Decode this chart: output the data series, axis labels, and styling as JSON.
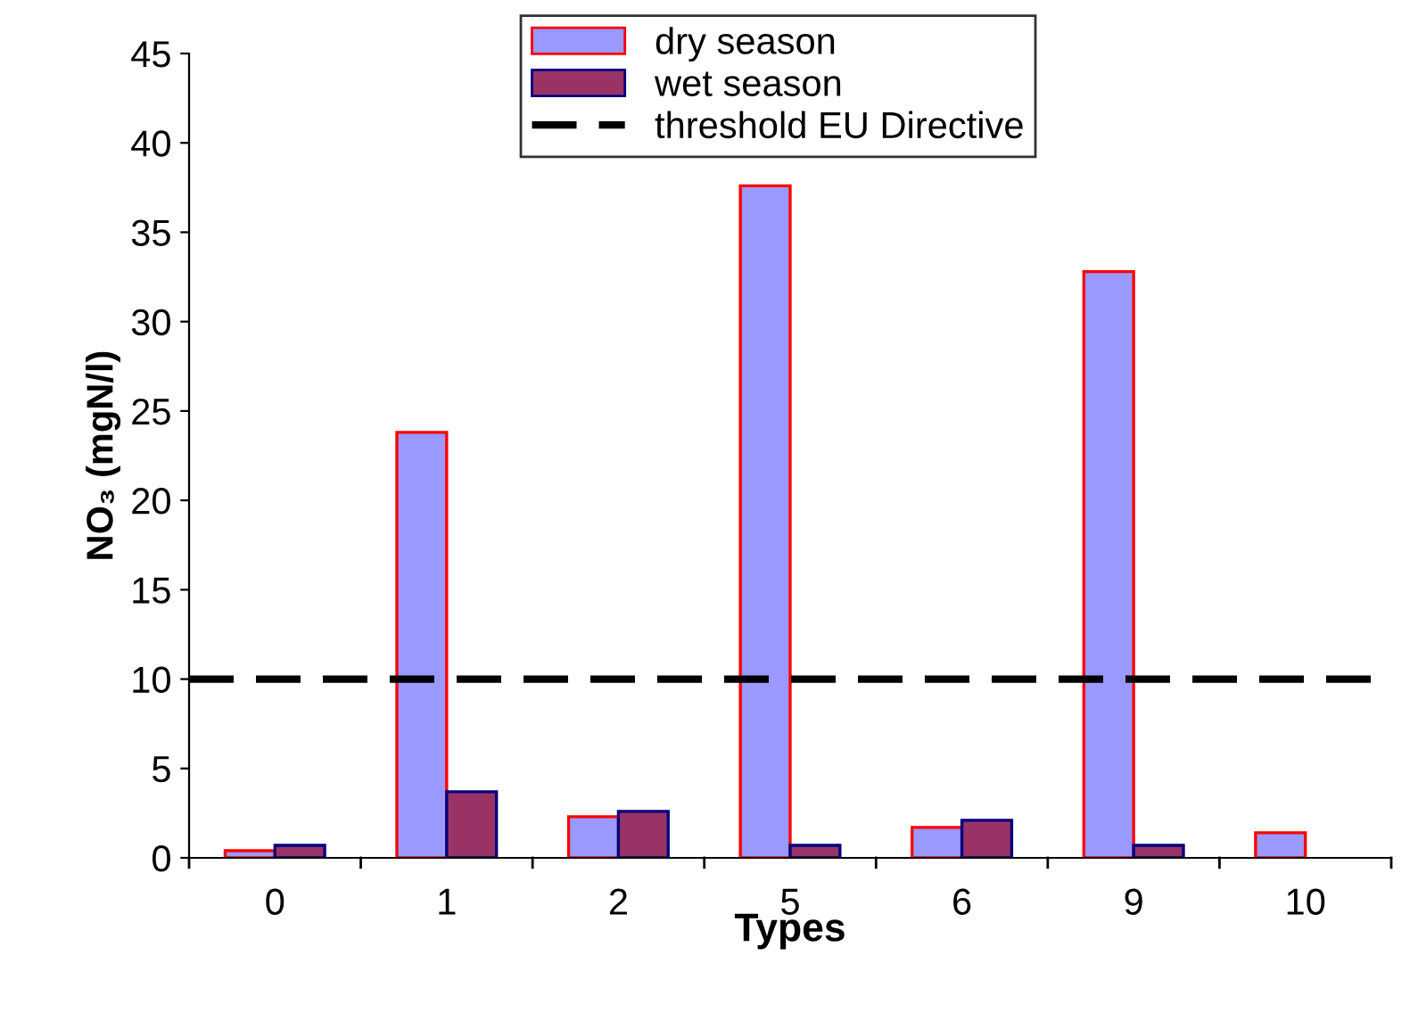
{
  "chart_data": {
    "type": "bar",
    "xlabel": "Types",
    "ylabel": "NO₃ (mgN/l)",
    "categories": [
      "0",
      "1",
      "2",
      "5",
      "6",
      "9",
      "10"
    ],
    "series": [
      {
        "name": "dry season",
        "color": "#9999ff",
        "values": [
          0.4,
          23.8,
          2.3,
          37.6,
          1.7,
          32.8,
          1.4
        ]
      },
      {
        "name": "wet season",
        "color": "#993366",
        "values": [
          0.7,
          3.7,
          2.6,
          0.7,
          2.1,
          0.7,
          null
        ]
      }
    ],
    "ylim": [
      0,
      45
    ],
    "yticks": [
      0,
      5,
      10,
      15,
      20,
      25,
      30,
      35,
      40,
      45
    ],
    "grid": false,
    "legend": "top",
    "ref_lines": [
      {
        "axis": "y",
        "value": 10,
        "label": "threshold EU Directive",
        "color": "#000000",
        "line_style": "dashed"
      }
    ]
  }
}
